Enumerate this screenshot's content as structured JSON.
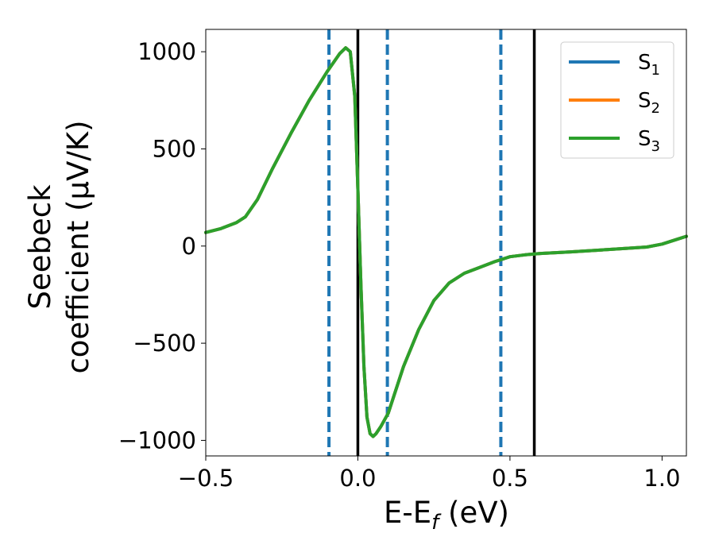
{
  "chart_data": {
    "type": "line",
    "title": "",
    "xlabel": "E-E",
    "xlabel_sub": "f",
    "xlabel_unit": " (eV)",
    "ylabel_line1": "Seebeck",
    "ylabel_line2": "coefficient  (μV/K)",
    "xlim": [
      -0.5,
      1.08
    ],
    "ylim": [
      -1080,
      1115
    ],
    "xticks": [
      -0.5,
      0.0,
      0.5,
      1.0
    ],
    "xtick_labels": [
      "−0.5",
      "0.0",
      "0.5",
      "1.0"
    ],
    "yticks": [
      -1000,
      -500,
      0,
      500,
      1000
    ],
    "ytick_labels": [
      "−1000",
      "−500",
      "0",
      "500",
      "1000"
    ],
    "grid": false,
    "legend_position": "top-right",
    "series": [
      {
        "name": "S",
        "sub": "1",
        "color": "#1f77b4",
        "x": [
          -0.5,
          -0.45,
          -0.4,
          -0.37,
          -0.33,
          -0.28,
          -0.22,
          -0.16,
          -0.1,
          -0.06,
          -0.04,
          -0.025,
          -0.01,
          0.0,
          0.01,
          0.02,
          0.03,
          0.04,
          0.05,
          0.06,
          0.075,
          0.1,
          0.15,
          0.2,
          0.25,
          0.3,
          0.35,
          0.4,
          0.45,
          0.5,
          0.55,
          0.6,
          0.7,
          0.8,
          0.9,
          0.95,
          1.0,
          1.05,
          1.08
        ],
        "y": [
          70,
          90,
          120,
          150,
          240,
          400,
          580,
          750,
          900,
          990,
          1020,
          1000,
          770,
          290,
          -200,
          -620,
          -880,
          -965,
          -980,
          -965,
          -930,
          -860,
          -620,
          -430,
          -280,
          -190,
          -140,
          -110,
          -80,
          -55,
          -45,
          -38,
          -30,
          -20,
          -10,
          -5,
          10,
          35,
          50
        ]
      },
      {
        "name": "S",
        "sub": "2",
        "color": "#ff7f0e",
        "x": [
          -0.5,
          -0.45,
          -0.4,
          -0.37,
          -0.33,
          -0.28,
          -0.22,
          -0.16,
          -0.1,
          -0.06,
          -0.04,
          -0.025,
          -0.01,
          0.0,
          0.01,
          0.02,
          0.03,
          0.04,
          0.05,
          0.06,
          0.075,
          0.1,
          0.15,
          0.2,
          0.25,
          0.3,
          0.35,
          0.4,
          0.45,
          0.5,
          0.55,
          0.6,
          0.7,
          0.8,
          0.9,
          0.95,
          1.0,
          1.05,
          1.08
        ],
        "y": [
          70,
          90,
          120,
          150,
          240,
          400,
          580,
          750,
          900,
          990,
          1020,
          1000,
          770,
          290,
          -200,
          -620,
          -880,
          -965,
          -980,
          -965,
          -930,
          -860,
          -620,
          -430,
          -280,
          -190,
          -140,
          -110,
          -80,
          -55,
          -45,
          -38,
          -30,
          -20,
          -10,
          -5,
          10,
          35,
          50
        ]
      },
      {
        "name": "S",
        "sub": "3",
        "color": "#2ca02c",
        "x": [
          -0.5,
          -0.45,
          -0.4,
          -0.37,
          -0.33,
          -0.28,
          -0.22,
          -0.16,
          -0.1,
          -0.06,
          -0.04,
          -0.025,
          -0.01,
          0.0,
          0.01,
          0.02,
          0.03,
          0.04,
          0.05,
          0.06,
          0.075,
          0.1,
          0.15,
          0.2,
          0.25,
          0.3,
          0.35,
          0.4,
          0.45,
          0.5,
          0.55,
          0.6,
          0.7,
          0.8,
          0.9,
          0.95,
          1.0,
          1.05,
          1.08
        ],
        "y": [
          70,
          90,
          120,
          150,
          240,
          400,
          580,
          750,
          900,
          990,
          1020,
          1000,
          770,
          290,
          -200,
          -620,
          -880,
          -965,
          -980,
          -965,
          -930,
          -860,
          -620,
          -430,
          -280,
          -190,
          -140,
          -110,
          -80,
          -55,
          -45,
          -38,
          -30,
          -20,
          -10,
          -5,
          10,
          35,
          50
        ]
      }
    ],
    "vlines": [
      {
        "x": -0.095,
        "style": "dashed",
        "color": "#1f77b4"
      },
      {
        "x": 0.0,
        "style": "solid",
        "color": "#000000"
      },
      {
        "x": 0.097,
        "style": "dashed",
        "color": "#1f77b4"
      },
      {
        "x": 0.47,
        "style": "dashed",
        "color": "#1f77b4"
      },
      {
        "x": 0.58,
        "style": "solid",
        "color": "#000000"
      }
    ]
  }
}
